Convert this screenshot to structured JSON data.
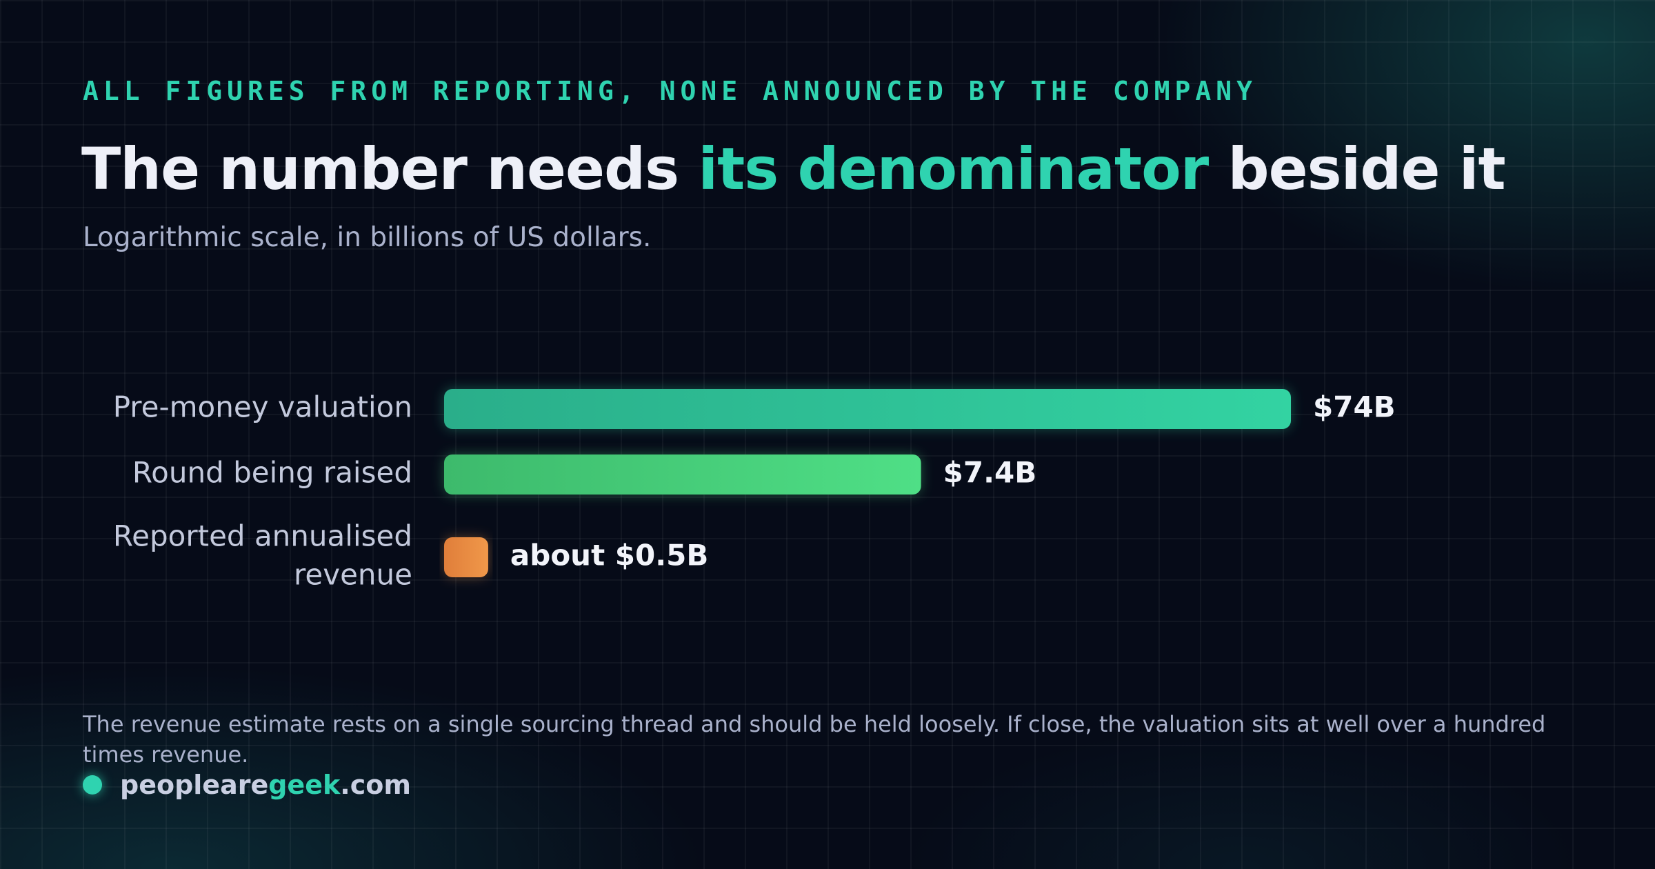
{
  "header": {
    "kicker": "ALL FIGURES FROM REPORTING, NONE ANNOUNCED BY THE COMPANY",
    "title_start": "The number needs ",
    "title_accent": "its denominator",
    "title_end": " beside it",
    "subtitle": "Logarithmic scale, in billions of US dollars."
  },
  "chart_data": {
    "type": "bar",
    "orientation": "horizontal",
    "scale": "log",
    "unit": "billions of US dollars",
    "categories": [
      [
        "Pre-money valuation"
      ],
      [
        "Round being raised"
      ],
      [
        "Reported annualised",
        "revenue"
      ]
    ],
    "values": [
      74,
      7.4,
      0.5
    ],
    "value_labels": [
      "$74B",
      "$7.4B",
      "about $0.5B"
    ],
    "colors": [
      [
        "#2aae8a",
        "#33d3a2"
      ],
      [
        "#3dba6c",
        "#4fdf86"
      ],
      [
        "#e07e3a",
        "#f0984a"
      ]
    ],
    "xlim": [
      0.38,
      74
    ],
    "grid": false,
    "legend": "none"
  },
  "footer": {
    "note": "The revenue estimate rests on a single sourcing thread and should be held loosely. If close, the valuation sits at well over a hundred times revenue.",
    "brand_start": "peopleare",
    "brand_accent": "geek",
    "brand_end": ".com"
  }
}
